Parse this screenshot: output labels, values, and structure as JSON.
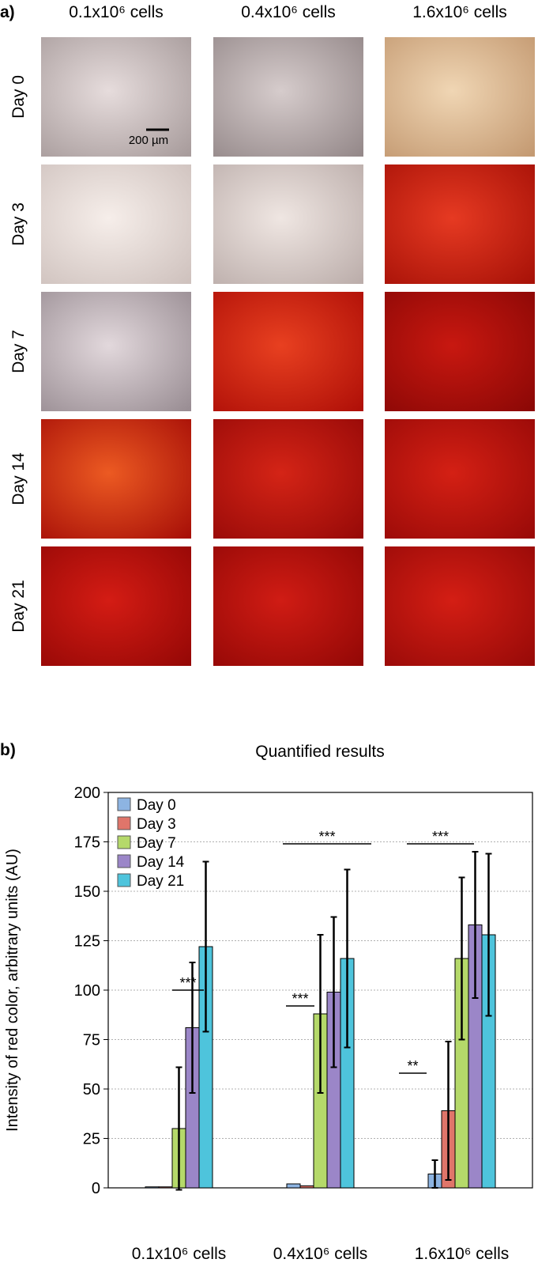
{
  "panel_a": {
    "label": "a)",
    "columns": [
      "0.1x10⁶ cells",
      "0.4x10⁶ cells",
      "1.6x10⁶ cells"
    ],
    "rows": [
      "Day 0",
      "Day 3",
      "Day 7",
      "Day 14",
      "Day 21"
    ],
    "scale_bar": "200 µm"
  },
  "chart_data": {
    "type": "bar",
    "panel_label": "b)",
    "title": "Quantified results",
    "y_label": "Intensity of red color, arbitrary units (AU)",
    "categories": [
      "0.1x10⁶ cells",
      "0.4x10⁶ cells",
      "1.6x10⁶ cells"
    ],
    "series": [
      {
        "name": "Day 0",
        "color": "#8db4e2",
        "values": [
          0.5,
          2,
          7
        ],
        "errors": [
          0,
          0,
          7
        ]
      },
      {
        "name": "Day 3",
        "color": "#e0756a",
        "values": [
          0.5,
          1,
          39
        ],
        "errors": [
          0,
          0,
          35
        ]
      },
      {
        "name": "Day 7",
        "color": "#b5d96a",
        "values": [
          30,
          88,
          116
        ],
        "errors": [
          31,
          40,
          41
        ]
      },
      {
        "name": "Day 14",
        "color": "#9b86c8",
        "values": [
          81,
          99,
          133
        ],
        "errors": [
          33,
          38,
          37
        ]
      },
      {
        "name": "Day 21",
        "color": "#4ec4dc",
        "values": [
          122,
          116,
          128
        ],
        "errors": [
          43,
          45,
          41
        ]
      }
    ],
    "ylim": [
      0,
      200
    ],
    "yticks": [
      0,
      25,
      50,
      75,
      100,
      125,
      150,
      175,
      200
    ],
    "grid": true,
    "legend": "top-left",
    "annotations": [
      {
        "text": "***",
        "y": 100
      },
      {
        "text": "***",
        "y": 92
      },
      {
        "text": "***",
        "y": 174
      },
      {
        "text": "**",
        "y": 58
      },
      {
        "text": "***",
        "y": 174
      }
    ]
  }
}
